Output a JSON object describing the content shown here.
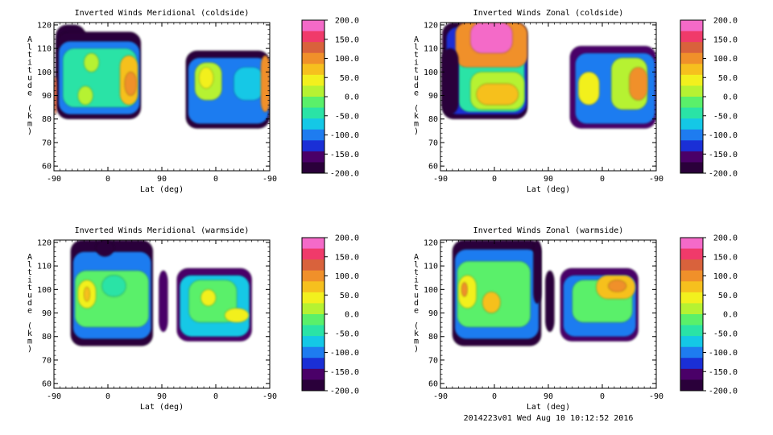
{
  "footer": "2014223v01 Wed Aug 10 10:12:52 2016",
  "colormap": [
    "#2a003a",
    "#4a0068",
    "#1a2fd6",
    "#1e7cf0",
    "#14c8e6",
    "#2ae3a6",
    "#5af06a",
    "#b6f232",
    "#f2f01e",
    "#f6c01e",
    "#f0902a",
    "#d9623c",
    "#f03a6a",
    "#f46ac8"
  ],
  "chart_data": [
    {
      "type": "heatmap",
      "title": "Inverted Winds Meridional (coldside)",
      "xlabel": "Lat (deg)",
      "ylabel": "Altitude (km)",
      "xticks": [
        "-90",
        "0",
        "90",
        "0",
        "-90"
      ],
      "yticks": [
        "60",
        "70",
        "80",
        "90",
        "100",
        "110",
        "120"
      ],
      "ylim": [
        58,
        121
      ],
      "colorbar": {
        "ticks": [
          "200.0",
          "150.0",
          "100.0",
          "50.0",
          "0.0",
          "-50.0",
          "-100.0",
          "-150.0",
          "-200.0"
        ],
        "range": [
          -200,
          200
        ]
      },
      "blobs": [
        {
          "lat": [
            -87,
            -37
          ],
          "alt": [
            82,
            120
          ],
          "value": -180
        },
        {
          "lat": [
            -85,
            55
          ],
          "alt": [
            80,
            117
          ],
          "value": -175
        },
        {
          "lat": [
            -82,
            53
          ],
          "alt": [
            82,
            113
          ],
          "value": -110
        },
        {
          "lat": [
            -75,
            48
          ],
          "alt": [
            85,
            110
          ],
          "value": -30
        },
        {
          "lat": [
            -40,
            -15
          ],
          "alt": [
            100,
            108
          ],
          "value": 20
        },
        {
          "lat": [
            -50,
            -25
          ],
          "alt": [
            86,
            94
          ],
          "value": 10
        },
        {
          "lat": [
            20,
            50
          ],
          "alt": [
            86,
            107
          ],
          "value": 70
        },
        {
          "lat": [
            28,
            48
          ],
          "alt": [
            90,
            100
          ],
          "value": 110
        },
        {
          "lat": [
            -90,
            -85
          ],
          "alt": [
            82,
            98
          ],
          "value": 140
        },
        {
          "lat": [
            130,
            270
          ],
          "alt": [
            76,
            109
          ],
          "value": -175
        },
        {
          "lat": [
            134,
            268
          ],
          "alt": [
            78,
            106
          ],
          "value": -110
        },
        {
          "lat": [
            145,
            190
          ],
          "alt": [
            88,
            104
          ],
          "value": 0
        },
        {
          "lat": [
            152,
            176
          ],
          "alt": [
            93,
            102
          ],
          "value": 40
        },
        {
          "lat": [
            210,
            260
          ],
          "alt": [
            88,
            102
          ],
          "value": -80
        },
        {
          "lat": [
            255,
            270
          ],
          "alt": [
            83,
            107
          ],
          "value": 95
        }
      ]
    },
    {
      "type": "heatmap",
      "title": "Inverted Winds Zonal (coldside)",
      "xlabel": "Lat (deg)",
      "ylabel": "Altitude (km)",
      "xticks": [
        "-90",
        "0",
        "90",
        "0",
        "-90"
      ],
      "yticks": [
        "60",
        "70",
        "80",
        "90",
        "100",
        "110",
        "120"
      ],
      "ylim": [
        58,
        121
      ],
      "colorbar": {
        "ticks": [
          "200.0",
          "150.0",
          "100.0",
          "50.0",
          "0.0",
          "-50.0",
          "-100.0",
          "-150.0",
          "-200.0"
        ],
        "range": [
          -200,
          200
        ]
      },
      "blobs": [
        {
          "lat": [
            -87,
            55
          ],
          "alt": [
            80,
            121
          ],
          "value": -175
        },
        {
          "lat": [
            -80,
            54
          ],
          "alt": [
            82,
            119
          ],
          "value": -140
        },
        {
          "lat": [
            -60,
            50
          ],
          "alt": [
            83,
            118
          ],
          "value": -40
        },
        {
          "lat": [
            -40,
            50
          ],
          "alt": [
            84,
            100
          ],
          "value": 20
        },
        {
          "lat": [
            -30,
            40
          ],
          "alt": [
            86,
            95
          ],
          "value": 60
        },
        {
          "lat": [
            -65,
            55
          ],
          "alt": [
            102,
            121
          ],
          "value": 110
        },
        {
          "lat": [
            -40,
            30
          ],
          "alt": [
            108,
            121
          ],
          "value": 185
        },
        {
          "lat": [
            -88,
            -60
          ],
          "alt": [
            82,
            110
          ],
          "value": -190
        },
        {
          "lat": [
            126,
            270
          ],
          "alt": [
            76,
            111
          ],
          "value": -170
        },
        {
          "lat": [
            135,
            268
          ],
          "alt": [
            78,
            108
          ],
          "value": -90
        },
        {
          "lat": [
            140,
            175
          ],
          "alt": [
            86,
            100
          ],
          "value": 40
        },
        {
          "lat": [
            195,
            255
          ],
          "alt": [
            84,
            106
          ],
          "value": 20
        },
        {
          "lat": [
            225,
            255
          ],
          "alt": [
            88,
            102
          ],
          "value": 90
        }
      ]
    },
    {
      "type": "heatmap",
      "title": "Inverted Winds Meridional (warmside)",
      "xlabel": "Lat (deg)",
      "ylabel": "Altitude (km)",
      "xticks": [
        "-90",
        "0",
        "90",
        "0",
        "-90"
      ],
      "yticks": [
        "60",
        "70",
        "80",
        "90",
        "100",
        "110",
        "120"
      ],
      "ylim": [
        58,
        121
      ],
      "colorbar": {
        "ticks": [
          "200.0",
          "150.0",
          "100.0",
          "50.0",
          "0.0",
          "-50.0",
          "-100.0",
          "-150.0",
          "-200.0"
        ],
        "range": [
          -200,
          200
        ]
      },
      "blobs": [
        {
          "lat": [
            -62,
            75
          ],
          "alt": [
            76,
            121
          ],
          "value": -175
        },
        {
          "lat": [
            -58,
            72
          ],
          "alt": [
            79,
            116
          ],
          "value": -100
        },
        {
          "lat": [
            -55,
            68
          ],
          "alt": [
            84,
            108
          ],
          "value": -20
        },
        {
          "lat": [
            -50,
            -20
          ],
          "alt": [
            92,
            104
          ],
          "value": 30
        },
        {
          "lat": [
            -40,
            -30
          ],
          "alt": [
            95,
            101
          ],
          "value": 60
        },
        {
          "lat": [
            -10,
            30
          ],
          "alt": [
            97,
            106
          ],
          "value": -40
        },
        {
          "lat": [
            -20,
            10
          ],
          "alt": [
            114,
            121
          ],
          "value": -200
        },
        {
          "lat": [
            85,
            100
          ],
          "alt": [
            82,
            108
          ],
          "value": -170
        },
        {
          "lat": [
            115,
            240
          ],
          "alt": [
            78,
            109
          ],
          "value": -170
        },
        {
          "lat": [
            120,
            236
          ],
          "alt": [
            80,
            106
          ],
          "value": -80
        },
        {
          "lat": [
            135,
            215
          ],
          "alt": [
            86,
            104
          ],
          "value": -10
        },
        {
          "lat": [
            155,
            180
          ],
          "alt": [
            93,
            100
          ],
          "value": 30
        },
        {
          "lat": [
            195,
            235
          ],
          "alt": [
            86,
            92
          ],
          "value": 50
        }
      ]
    },
    {
      "type": "heatmap",
      "title": "Inverted Winds Zonal (warmside)",
      "xlabel": "Lat (deg)",
      "ylabel": "Altitude (km)",
      "xticks": [
        "-90",
        "0",
        "90",
        "0",
        "-90"
      ],
      "yticks": [
        "60",
        "70",
        "80",
        "90",
        "100",
        "110",
        "120"
      ],
      "ylim": [
        58,
        121
      ],
      "colorbar": {
        "ticks": [
          "200.0",
          "150.0",
          "100.0",
          "50.0",
          "0.0",
          "-50.0",
          "-100.0",
          "-150.0",
          "-200.0"
        ],
        "range": [
          -200,
          200
        ]
      },
      "blobs": [
        {
          "lat": [
            -70,
            78
          ],
          "alt": [
            76,
            121
          ],
          "value": -175
        },
        {
          "lat": [
            -66,
            74
          ],
          "alt": [
            79,
            117
          ],
          "value": -90
        },
        {
          "lat": [
            -62,
            60
          ],
          "alt": [
            84,
            112
          ],
          "value": -20
        },
        {
          "lat": [
            -60,
            -30
          ],
          "alt": [
            92,
            106
          ],
          "value": 40
        },
        {
          "lat": [
            -55,
            -45
          ],
          "alt": [
            97,
            103
          ],
          "value": 110
        },
        {
          "lat": [
            -20,
            10
          ],
          "alt": [
            90,
            99
          ],
          "value": 70
        },
        {
          "lat": [
            65,
            78
          ],
          "alt": [
            94,
            121
          ],
          "value": -200
        },
        {
          "lat": [
            85,
            100
          ],
          "alt": [
            82,
            108
          ],
          "value": -175
        },
        {
          "lat": [
            110,
            240
          ],
          "alt": [
            78,
            109
          ],
          "value": -170
        },
        {
          "lat": [
            115,
            236
          ],
          "alt": [
            80,
            106
          ],
          "value": -90
        },
        {
          "lat": [
            130,
            230
          ],
          "alt": [
            86,
            104
          ],
          "value": -20
        },
        {
          "lat": [
            170,
            235
          ],
          "alt": [
            96,
            106
          ],
          "value": 60
        },
        {
          "lat": [
            190,
            220
          ],
          "alt": [
            99,
            104
          ],
          "value": 110
        }
      ]
    }
  ]
}
